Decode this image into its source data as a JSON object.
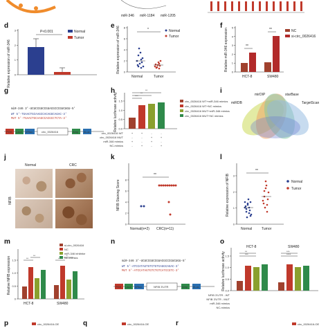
{
  "labels": {
    "d": "d",
    "e": "e",
    "f": "f",
    "g": "g",
    "h": "h",
    "i": "i",
    "j": "j",
    "k": "k",
    "l": "l",
    "m": "m",
    "n": "n",
    "o": "o",
    "p": "p",
    "q": "q",
    "r": "r"
  },
  "top": {
    "mir_a": "miR-346",
    "mir_b": "miR-1184",
    "mir_c": "miR-1205"
  },
  "d": {
    "ylabel": "Relative expression of miR-346",
    "pval": "P<0.001",
    "legend": [
      "Normal",
      "Tumor"
    ],
    "colors": [
      "#2b3f8f",
      "#c0392b"
    ],
    "ticks": [
      "0",
      "1",
      "2",
      "3"
    ]
  },
  "e": {
    "ylabel": "Relative expression of miR-346",
    "legend": [
      "Normal",
      "Tumor"
    ],
    "categories": [
      "Normal",
      "Tumor"
    ],
    "sig": "*",
    "ticks": [
      "0",
      "2",
      "4",
      "6",
      "8"
    ]
  },
  "f": {
    "ylabel": "Relative miR-346 expression",
    "legend": [
      "NC",
      "si-circ_0026416"
    ],
    "colors": [
      "#a0412e",
      "#b22a2a"
    ],
    "categories": [
      "HCT-8",
      "SW480"
    ],
    "sig": [
      "**",
      "**"
    ],
    "ticks": [
      "0",
      "1",
      "2",
      "3",
      "4",
      "5"
    ]
  },
  "g": {
    "mir": "miR-346 3'-UCUCCGUCCGUACGCCCGUCUGU-5'",
    "wt": "WT   5'-TGAACTGCAAGCCACAGGCAGAC-3'",
    "mut": "MUT 5'-TGAACTGCAAGCCACGCCTCTA-3'",
    "circ": "circ_0026416",
    "parts": [
      "PGK",
      "LacZ",
      "hRluc",
      "Ampr",
      "ColE1",
      "Amp",
      "hLuc"
    ]
  },
  "h": {
    "ylabel": "Relative luciferase activity",
    "legend": [
      "circ_0026416 WT+miR-346 mimics",
      "circ_0026416 WT+NC mimics",
      "circ_0026416 MUT+miR-346 mimics",
      "circ_0026416 MUT+NC mimics"
    ],
    "colors": [
      "#a0412e",
      "#c0392b",
      "#8aa02e",
      "#2f8a4a"
    ],
    "rows": [
      "circ_0026416 WT",
      "circ_0026416 MUT",
      "miR-346 mimics",
      "NC-mimics"
    ],
    "rowvals": [
      [
        "+",
        "+",
        "-",
        "-"
      ],
      [
        "-",
        "-",
        "+",
        "+"
      ],
      [
        "+",
        "-",
        "+",
        "-"
      ],
      [
        "-",
        "+",
        "-",
        "+"
      ]
    ],
    "sig": [
      "***",
      "**",
      "**"
    ],
    "ticks": [
      "0.0",
      "0.5",
      "1.0",
      "1.5"
    ]
  },
  "i": {
    "sets": [
      "mirDIP",
      "miRWalk",
      "starBase",
      "TargetScan",
      "miRDB"
    ],
    "colors": [
      "#c8d84a",
      "#f0a060",
      "#7ec8a0",
      "#8fb7e0",
      "#6b7bd0"
    ]
  },
  "j": {
    "cols": [
      "Normal",
      "CRC"
    ],
    "rowlabel": "NFIB"
  },
  "k": {
    "ylabel": "NFIB Staining Score",
    "categories": [
      "Normal(n=2)",
      "CRC(n=11)"
    ],
    "sig": "**",
    "ticks": [
      "0",
      "2",
      "4",
      "6",
      "8"
    ]
  },
  "l": {
    "ylabel": "Relative expression of NFIB",
    "legend": [
      "Normal",
      "Tumor"
    ],
    "categories": [
      "Normal",
      "Tumor"
    ],
    "sig": "**",
    "ticks": [
      "0",
      "1",
      "2",
      "3"
    ]
  },
  "m": {
    "ylabel": "Relative NFIB expression",
    "legend": [
      "si-circ_0026416",
      "NC",
      "miR-346 inhibitor",
      "NC-mimics"
    ],
    "colors": [
      "#a0412e",
      "#c0392b",
      "#8aa02e",
      "#2f8a4a"
    ],
    "categories": [
      "HCT-8",
      "SW480"
    ],
    "sig": [
      "**",
      "**",
      "**",
      "*"
    ],
    "ticks": [
      "0",
      "0.5",
      "1.0",
      "1.5"
    ]
  },
  "n": {
    "mir": "miR-346 3'-UCUCCGUCCGUACGCCCGUCUGU-5'",
    "wt": "WT   5'-ATCCATAGTGTCTGTCAGGCAGAC-3'",
    "mut": "MUT 5'-ATCCATAGTGTCTGTCATCCGTC-3'",
    "utr": "NFIB 3'UTR",
    "parts": [
      "PGK",
      "LacZ",
      "hRluc",
      "Ampr",
      "ColE1",
      "Amp",
      "hLuc"
    ]
  },
  "o": {
    "ylabel": "Relative luciferase activity",
    "groups": [
      "HCT-8",
      "SW480"
    ],
    "colors": [
      "#a0412e",
      "#c0392b",
      "#8aa02e",
      "#2f8a4a"
    ],
    "rows": [
      "NFIB 3'UTR - WT",
      "NFIB 3'UTR - MUT",
      "miR-346 mimics",
      "NC-mimics"
    ],
    "sig": [
      "***",
      "**",
      "****",
      "***"
    ],
    "ticks": [
      "0.0",
      "0.5",
      "1.0",
      "1.5"
    ]
  },
  "bottom": {
    "p_legend": "circ_0026416-OE",
    "q_legend": "circ_0026416-OE",
    "r_legend": "circ_0026416-OE"
  }
}
